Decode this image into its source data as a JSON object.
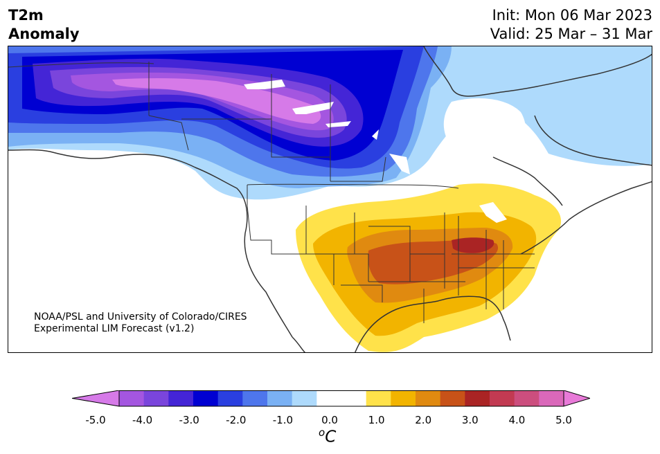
{
  "header": {
    "title_line1": "T2m",
    "title_line2": "Anomaly",
    "init_text": "Init: Mon 06 Mar 2023",
    "valid_text": "Valid: 25 Mar – 31 Mar"
  },
  "credit": {
    "line1": "NOAA/PSL and University of Colorado/CIRES",
    "line2": "Experimental LIM Forecast (v1.2)"
  },
  "colorbar": {
    "colors": [
      "#d67ae8",
      "#a456e0",
      "#7a45dc",
      "#4425d6",
      "#0000d2",
      "#2a3fe0",
      "#4e76ec",
      "#7ab1f4",
      "#aedafc",
      "#ffffff",
      "#ffffff",
      "#ffe24a",
      "#f2b400",
      "#e08a10",
      "#c85218",
      "#aa2424",
      "#c23a52",
      "#cc4e7e",
      "#da68ba",
      "#e87ad8"
    ],
    "tick_labels": [
      "-5.0",
      "-4.0",
      "-3.0",
      "-2.0",
      "-1.0",
      "0.0",
      "1.0",
      "2.0",
      "3.0",
      "4.0",
      "5.0"
    ],
    "units_base": "C",
    "units_sup": "o"
  }
}
